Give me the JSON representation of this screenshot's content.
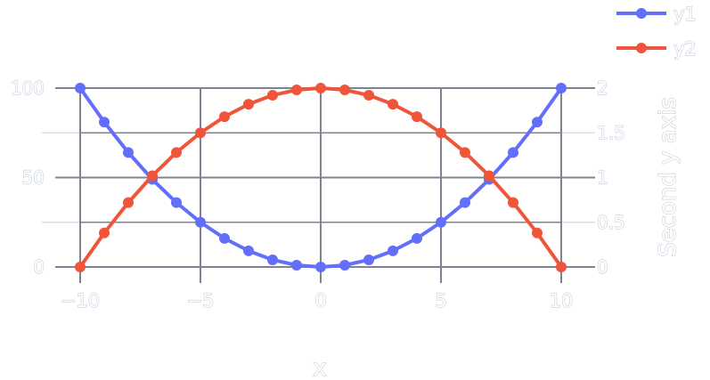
{
  "chart_data": {
    "type": "line",
    "xlabel": "x",
    "ylabel": "",
    "y2label": "Second y axis",
    "xlim": [
      -10,
      10
    ],
    "ylim": [
      0,
      100
    ],
    "y2lim": [
      0,
      2
    ],
    "grid": true,
    "legend": "top-right",
    "xticks": [
      "−10",
      "−5",
      "0",
      "5",
      "10"
    ],
    "yticks": [
      "0",
      "50",
      "100"
    ],
    "y2ticks": [
      "0",
      "0.5",
      "1",
      "1.5",
      "2"
    ],
    "x": [
      -10,
      -9,
      -8,
      -7,
      -6,
      -5,
      -4,
      -3,
      -2,
      -1,
      0,
      1,
      2,
      3,
      4,
      5,
      6,
      7,
      8,
      9,
      10
    ],
    "series": [
      {
        "name": "y1",
        "color": "#636efa",
        "axis": "y",
        "values": [
          100,
          81,
          64,
          49,
          36,
          25,
          16,
          9,
          4,
          1,
          0,
          1,
          4,
          9,
          16,
          25,
          36,
          49,
          64,
          81,
          100
        ]
      },
      {
        "name": "y2",
        "color": "#ef553b",
        "axis": "y2",
        "values": [
          0,
          0.38,
          0.72,
          1.02,
          1.28,
          1.5,
          1.68,
          1.82,
          1.92,
          1.98,
          2,
          1.98,
          1.92,
          1.82,
          1.68,
          1.5,
          1.28,
          1.02,
          0.72,
          0.38,
          0
        ]
      }
    ],
    "colors": {
      "grid": "#7f8391",
      "minor_grid": "#d5d8df",
      "tick_text": "#c5cfdc"
    }
  }
}
